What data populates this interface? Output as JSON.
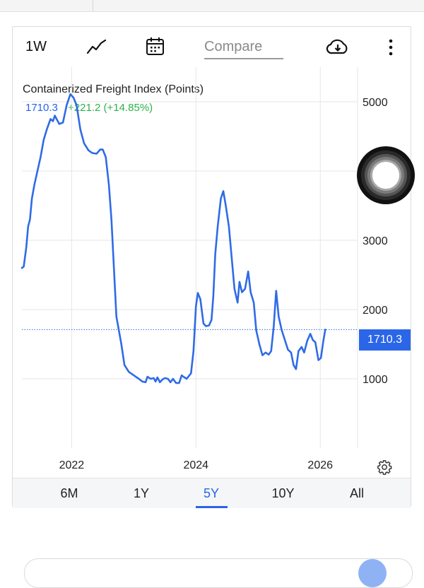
{
  "toolbar": {
    "period": "1W",
    "compare_placeholder": "Compare"
  },
  "chart_data": {
    "type": "line",
    "title": "Containerized Freight Index (Points)",
    "last_value": "1710.3",
    "change": "+221.2 (+14.85%)",
    "price_tag": "1710.3",
    "x_ticks": [
      "2022",
      "2024",
      "2026"
    ],
    "y_ticks": [
      "1000",
      "2000",
      "3000",
      "5000"
    ],
    "ylim": [
      0,
      5500
    ],
    "xlim": [
      2021.2,
      2026.6
    ],
    "grid": true,
    "line_color": "#2f6be6",
    "series": [
      {
        "points": [
          [
            2021.2,
            2600
          ],
          [
            2021.23,
            2620
          ],
          [
            2021.27,
            2900
          ],
          [
            2021.3,
            3200
          ],
          [
            2021.33,
            3300
          ],
          [
            2021.36,
            3600
          ],
          [
            2021.4,
            3800
          ],
          [
            2021.45,
            4000
          ],
          [
            2021.5,
            4200
          ],
          [
            2021.55,
            4450
          ],
          [
            2021.6,
            4600
          ],
          [
            2021.66,
            4750
          ],
          [
            2021.7,
            4720
          ],
          [
            2021.73,
            4800
          ],
          [
            2021.8,
            4680
          ],
          [
            2021.86,
            4700
          ],
          [
            2021.92,
            4950
          ],
          [
            2021.98,
            5110
          ],
          [
            2022.03,
            5060
          ],
          [
            2022.08,
            4950
          ],
          [
            2022.14,
            4600
          ],
          [
            2022.2,
            4400
          ],
          [
            2022.27,
            4300
          ],
          [
            2022.33,
            4260
          ],
          [
            2022.4,
            4250
          ],
          [
            2022.46,
            4310
          ],
          [
            2022.5,
            4310
          ],
          [
            2022.55,
            4200
          ],
          [
            2022.6,
            3800
          ],
          [
            2022.64,
            3300
          ],
          [
            2022.68,
            2600
          ],
          [
            2022.72,
            1900
          ],
          [
            2022.76,
            1700
          ],
          [
            2022.8,
            1500
          ],
          [
            2022.85,
            1200
          ],
          [
            2022.92,
            1100
          ],
          [
            2023.0,
            1050
          ],
          [
            2023.08,
            1000
          ],
          [
            2023.14,
            960
          ],
          [
            2023.19,
            950
          ],
          [
            2023.22,
            1030
          ],
          [
            2023.27,
            1000
          ],
          [
            2023.32,
            1010
          ],
          [
            2023.35,
            960
          ],
          [
            2023.38,
            1020
          ],
          [
            2023.42,
            950
          ],
          [
            2023.46,
            990
          ],
          [
            2023.5,
            1010
          ],
          [
            2023.55,
            1000
          ],
          [
            2023.59,
            950
          ],
          [
            2023.63,
            1000
          ],
          [
            2023.68,
            940
          ],
          [
            2023.73,
            940
          ],
          [
            2023.77,
            1050
          ],
          [
            2023.8,
            1030
          ],
          [
            2023.85,
            1000
          ],
          [
            2023.92,
            1080
          ],
          [
            2023.96,
            1400
          ],
          [
            2024.0,
            2050
          ],
          [
            2024.03,
            2240
          ],
          [
            2024.07,
            2150
          ],
          [
            2024.12,
            1800
          ],
          [
            2024.16,
            1760
          ],
          [
            2024.21,
            1770
          ],
          [
            2024.25,
            1850
          ],
          [
            2024.28,
            2200
          ],
          [
            2024.31,
            2800
          ],
          [
            2024.35,
            3200
          ],
          [
            2024.4,
            3600
          ],
          [
            2024.44,
            3710
          ],
          [
            2024.48,
            3500
          ],
          [
            2024.53,
            3200
          ],
          [
            2024.57,
            2800
          ],
          [
            2024.62,
            2300
          ],
          [
            2024.67,
            2100
          ],
          [
            2024.7,
            2400
          ],
          [
            2024.74,
            2250
          ],
          [
            2024.79,
            2300
          ],
          [
            2024.84,
            2550
          ],
          [
            2024.88,
            2250
          ],
          [
            2024.93,
            2100
          ],
          [
            2024.97,
            1700
          ],
          [
            2025.02,
            1500
          ],
          [
            2025.07,
            1340
          ],
          [
            2025.12,
            1380
          ],
          [
            2025.17,
            1350
          ],
          [
            2025.21,
            1400
          ],
          [
            2025.25,
            1750
          ],
          [
            2025.29,
            2270
          ],
          [
            2025.33,
            1900
          ],
          [
            2025.38,
            1700
          ],
          [
            2025.43,
            1560
          ],
          [
            2025.48,
            1420
          ],
          [
            2025.53,
            1380
          ],
          [
            2025.57,
            1200
          ],
          [
            2025.61,
            1140
          ],
          [
            2025.65,
            1400
          ],
          [
            2025.7,
            1460
          ],
          [
            2025.74,
            1380
          ],
          [
            2025.79,
            1550
          ],
          [
            2025.84,
            1650
          ],
          [
            2025.88,
            1560
          ],
          [
            2025.92,
            1530
          ],
          [
            2025.97,
            1270
          ],
          [
            2026.01,
            1300
          ],
          [
            2026.05,
            1550
          ],
          [
            2026.08,
            1710
          ]
        ]
      }
    ]
  },
  "range_tabs": [
    {
      "label": "6M",
      "active": false
    },
    {
      "label": "1Y",
      "active": false
    },
    {
      "label": "5Y",
      "active": true
    },
    {
      "label": "10Y",
      "active": false
    },
    {
      "label": "All",
      "active": false
    }
  ],
  "icons": {
    "chart_type": "line-chart-icon",
    "calendar": "calendar-icon",
    "download": "cloud-download-icon",
    "more": "more-vertical-icon",
    "settings": "gear-icon"
  }
}
